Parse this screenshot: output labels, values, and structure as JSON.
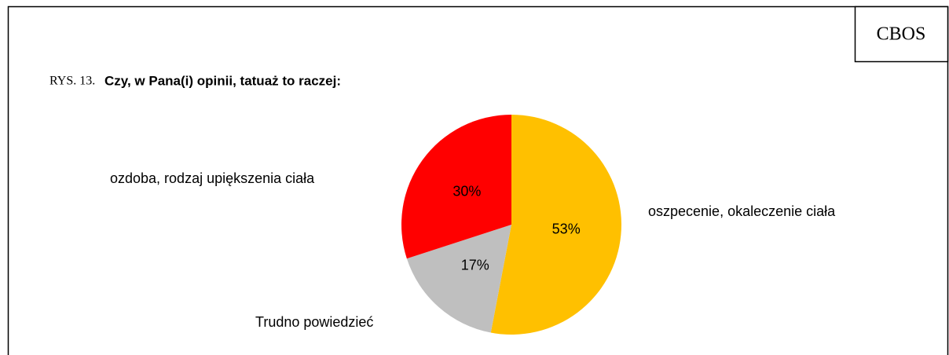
{
  "chart_data": {
    "type": "pie",
    "source": "CBOS",
    "figure_label": "RYS. 13.",
    "title": "Czy, w Pana(i) opinii, tatuaż to raczej:",
    "categories": [
      "oszpecenie, okaleczenie ciała",
      "Trudno powiedzieć",
      "ozdoba, rodzaj upiększenia ciała"
    ],
    "values": [
      53,
      17,
      30
    ],
    "value_labels": [
      "53%",
      "17%",
      "30%"
    ],
    "colors": [
      "#ffc000",
      "#bfbfbf",
      "#ff0000"
    ]
  }
}
